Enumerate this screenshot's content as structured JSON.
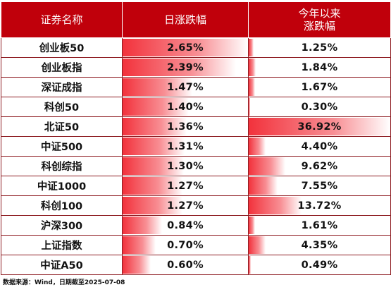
{
  "chart_data": {
    "type": "table",
    "columns": [
      "证券名称",
      "日涨跌幅",
      "今年以来\n涨跌幅"
    ],
    "rows": [
      {
        "name": "创业板50",
        "daily": "2.65%",
        "ytd": "1.25%"
      },
      {
        "name": "创业板指",
        "daily": "2.39%",
        "ytd": "1.84%"
      },
      {
        "name": "深证成指",
        "daily": "1.47%",
        "ytd": "1.67%"
      },
      {
        "name": "科创50",
        "daily": "1.40%",
        "ytd": "0.30%"
      },
      {
        "name": "北证50",
        "daily": "1.36%",
        "ytd": "36.92%"
      },
      {
        "name": "中证500",
        "daily": "1.31%",
        "ytd": "4.40%"
      },
      {
        "name": "科创综指",
        "daily": "1.30%",
        "ytd": "9.62%"
      },
      {
        "name": "中证1000",
        "daily": "1.27%",
        "ytd": "7.55%"
      },
      {
        "name": "科创100",
        "daily": "1.27%",
        "ytd": "13.72%"
      },
      {
        "name": "沪深300",
        "daily": "0.84%",
        "ytd": "1.61%"
      },
      {
        "name": "上证指数",
        "daily": "0.70%",
        "ytd": "4.35%"
      },
      {
        "name": "中证A50",
        "daily": "0.60%",
        "ytd": "0.49%"
      }
    ],
    "bar_color": "#f2323c",
    "footnote": "数据来源：Wind，日期截至2025-07-08"
  }
}
